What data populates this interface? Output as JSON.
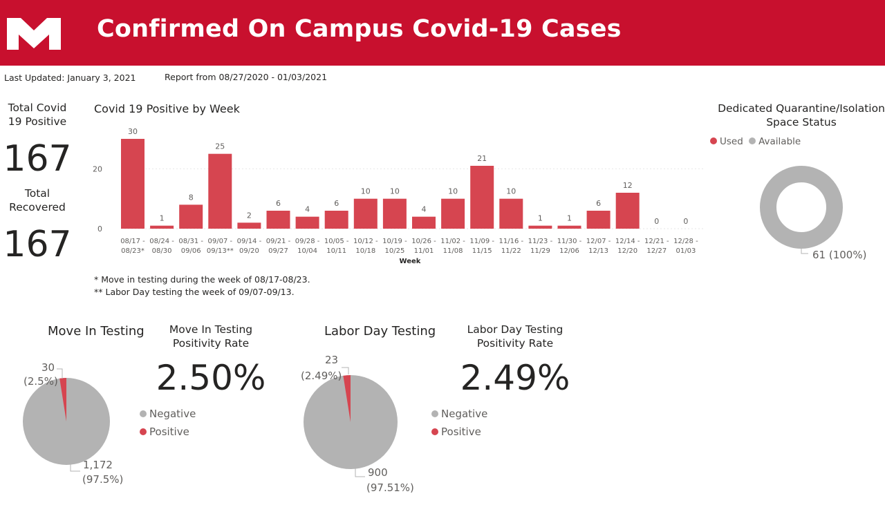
{
  "header": {
    "title": "Confirmed On Campus Covid-19 Cases",
    "brand_color": "#c8102e"
  },
  "meta": {
    "last_updated": "Last Updated: January 3, 2021",
    "report_range": "Report from 08/27/2020 - 01/03/2021"
  },
  "kpis": {
    "total_positive_label": "Total Covid 19 Positive",
    "total_positive_value": "167",
    "total_recovered_label": "Total Recovered",
    "total_recovered_value": "167"
  },
  "notes": {
    "note1": "* Move in testing during the week of 08/17-08/23.",
    "note2": "** Labor Day testing the week of 09/07-09/13."
  },
  "quarantine": {
    "title_line1": "Dedicated Quarantine/Isolation",
    "title_line2": "Space Status",
    "legend_used": "Used",
    "legend_available": "Available",
    "label": "61 (100%)"
  },
  "move_in": {
    "title": "Move In Testing",
    "rate_label_line1": "Move In Testing",
    "rate_label_line2": "Positivity Rate",
    "rate_value": "2.50%",
    "positive_value": "30",
    "positive_pct": "(2.5%)",
    "negative_value": "1,172",
    "negative_pct": "(97.5%)",
    "legend_negative": "Negative",
    "legend_positive": "Positive"
  },
  "labor_day": {
    "title": "Labor Day Testing",
    "rate_label_line1": "Labor Day Testing",
    "rate_label_line2": "Positivity Rate",
    "rate_value": "2.49%",
    "positive_value": "23",
    "positive_pct": "(2.49%)",
    "negative_value": "900",
    "negative_pct": "(97.51%)",
    "legend_negative": "Negative",
    "legend_positive": "Positive"
  },
  "colors": {
    "positive": "#d64550",
    "negative": "#b3b3b3",
    "used": "#d64550",
    "available": "#b3b3b3"
  },
  "chart_data": [
    {
      "type": "bar",
      "title": "Covid 19 Positive by Week",
      "xlabel": "Week",
      "ylabel": "",
      "ylim": [
        0,
        30
      ],
      "yticks": [
        0,
        20
      ],
      "categories": [
        [
          "08/17 -",
          "08/23*"
        ],
        [
          "08/24 -",
          "08/30"
        ],
        [
          "08/31 -",
          "09/06"
        ],
        [
          "09/07 -",
          "09/13**"
        ],
        [
          "09/14 -",
          "09/20"
        ],
        [
          "09/21 -",
          "09/27"
        ],
        [
          "09/28 -",
          "10/04"
        ],
        [
          "10/05 -",
          "10/11"
        ],
        [
          "10/12 -",
          "10/18"
        ],
        [
          "10/19 -",
          "10/25"
        ],
        [
          "10/26 -",
          "11/01"
        ],
        [
          "11/02 -",
          "11/08"
        ],
        [
          "11/09 -",
          "11/15"
        ],
        [
          "11/16 -",
          "11/22"
        ],
        [
          "11/23 -",
          "11/29"
        ],
        [
          "11/30 -",
          "12/06"
        ],
        [
          "12/07 -",
          "12/13"
        ],
        [
          "12/14 -",
          "12/20"
        ],
        [
          "12/21 -",
          "12/27"
        ],
        [
          "12/28 -",
          "01/03"
        ]
      ],
      "values": [
        30,
        1,
        8,
        25,
        2,
        6,
        4,
        6,
        10,
        10,
        4,
        10,
        21,
        10,
        1,
        1,
        6,
        12,
        0,
        0
      ],
      "grid": true
    },
    {
      "type": "pie",
      "title": "Dedicated Quarantine/Isolation Space Status",
      "donut": true,
      "categories": [
        "Used",
        "Available"
      ],
      "values": [
        0,
        61
      ]
    },
    {
      "type": "pie",
      "title": "Move In Testing",
      "categories": [
        "Negative",
        "Positive"
      ],
      "values": [
        1172,
        30
      ]
    },
    {
      "type": "pie",
      "title": "Labor Day Testing",
      "categories": [
        "Negative",
        "Positive"
      ],
      "values": [
        900,
        23
      ]
    }
  ]
}
